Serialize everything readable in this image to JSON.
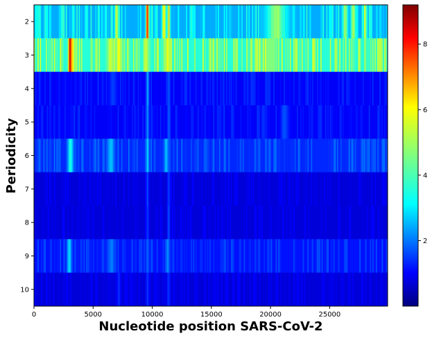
{
  "chart_data": {
    "type": "heatmap",
    "title": "",
    "xlabel": "Nucleotide position SARS-CoV-2",
    "ylabel": "Periodicity",
    "xlim": [
      0,
      29903
    ],
    "x_ticks": [
      0,
      5000,
      10000,
      15000,
      20000,
      25000
    ],
    "x_tick_labels": [
      "0",
      "5000",
      "10000",
      "15000",
      "20000",
      "25000"
    ],
    "rows": [
      {
        "periodicity": 2,
        "label": "2",
        "baseline": 2.7,
        "hotspots": [
          [
            7000,
            6.0,
            150
          ],
          [
            9600,
            8.9,
            120
          ],
          [
            11000,
            6.4,
            150
          ],
          [
            11400,
            6.0,
            120
          ],
          [
            20500,
            4.8,
            800
          ],
          [
            26300,
            5.2,
            200
          ],
          [
            27000,
            5.0,
            200
          ],
          [
            28000,
            5.4,
            150
          ]
        ]
      },
      {
        "periodicity": 3,
        "label": "3",
        "baseline": 3.8,
        "hotspots": [
          [
            3050,
            9.0,
            130
          ],
          [
            3250,
            6.0,
            200
          ],
          [
            6500,
            5.4,
            300
          ],
          [
            7200,
            5.8,
            250
          ],
          [
            9500,
            5.4,
            200
          ],
          [
            11300,
            5.5,
            300
          ],
          [
            20000,
            4.8,
            600
          ]
        ]
      },
      {
        "periodicity": 4,
        "label": "4",
        "baseline": 1.1,
        "hotspots": [
          [
            9600,
            2.9,
            120
          ],
          [
            11400,
            2.2,
            120
          ],
          [
            6700,
            1.8,
            300
          ]
        ]
      },
      {
        "periodicity": 5,
        "label": "5",
        "baseline": 1.1,
        "hotspots": [
          [
            9600,
            2.8,
            120
          ],
          [
            11400,
            2.2,
            120
          ],
          [
            21200,
            2.0,
            300
          ]
        ]
      },
      {
        "periodicity": 6,
        "label": "6",
        "baseline": 1.5,
        "hotspots": [
          [
            3100,
            3.8,
            250
          ],
          [
            6500,
            3.0,
            300
          ],
          [
            9600,
            3.4,
            120
          ],
          [
            11200,
            2.9,
            200
          ]
        ]
      },
      {
        "periodicity": 7,
        "label": "7",
        "baseline": 0.8,
        "hotspots": [
          [
            9600,
            1.8,
            120
          ],
          [
            11400,
            1.8,
            120
          ]
        ]
      },
      {
        "periodicity": 8,
        "label": "8",
        "baseline": 0.8,
        "hotspots": [
          [
            9600,
            1.9,
            120
          ],
          [
            11400,
            1.9,
            120
          ]
        ]
      },
      {
        "periodicity": 9,
        "label": "9",
        "baseline": 1.3,
        "hotspots": [
          [
            3000,
            3.3,
            200
          ],
          [
            6500,
            2.4,
            300
          ],
          [
            9600,
            2.3,
            120
          ],
          [
            11300,
            2.4,
            200
          ]
        ]
      },
      {
        "periodicity": 10,
        "label": "10",
        "baseline": 0.8,
        "hotspots": [
          [
            7200,
            1.7,
            120
          ],
          [
            9600,
            1.8,
            120
          ],
          [
            11400,
            1.8,
            120
          ]
        ]
      }
    ],
    "columns": 300,
    "colorbar": {
      "colormap": "jet",
      "vmin": 0.0,
      "vmax": 9.2,
      "ticks": [
        2,
        4,
        6,
        8
      ],
      "tick_labels": [
        "2",
        "4",
        "6",
        "8"
      ]
    },
    "grid": false,
    "legend": "none"
  }
}
